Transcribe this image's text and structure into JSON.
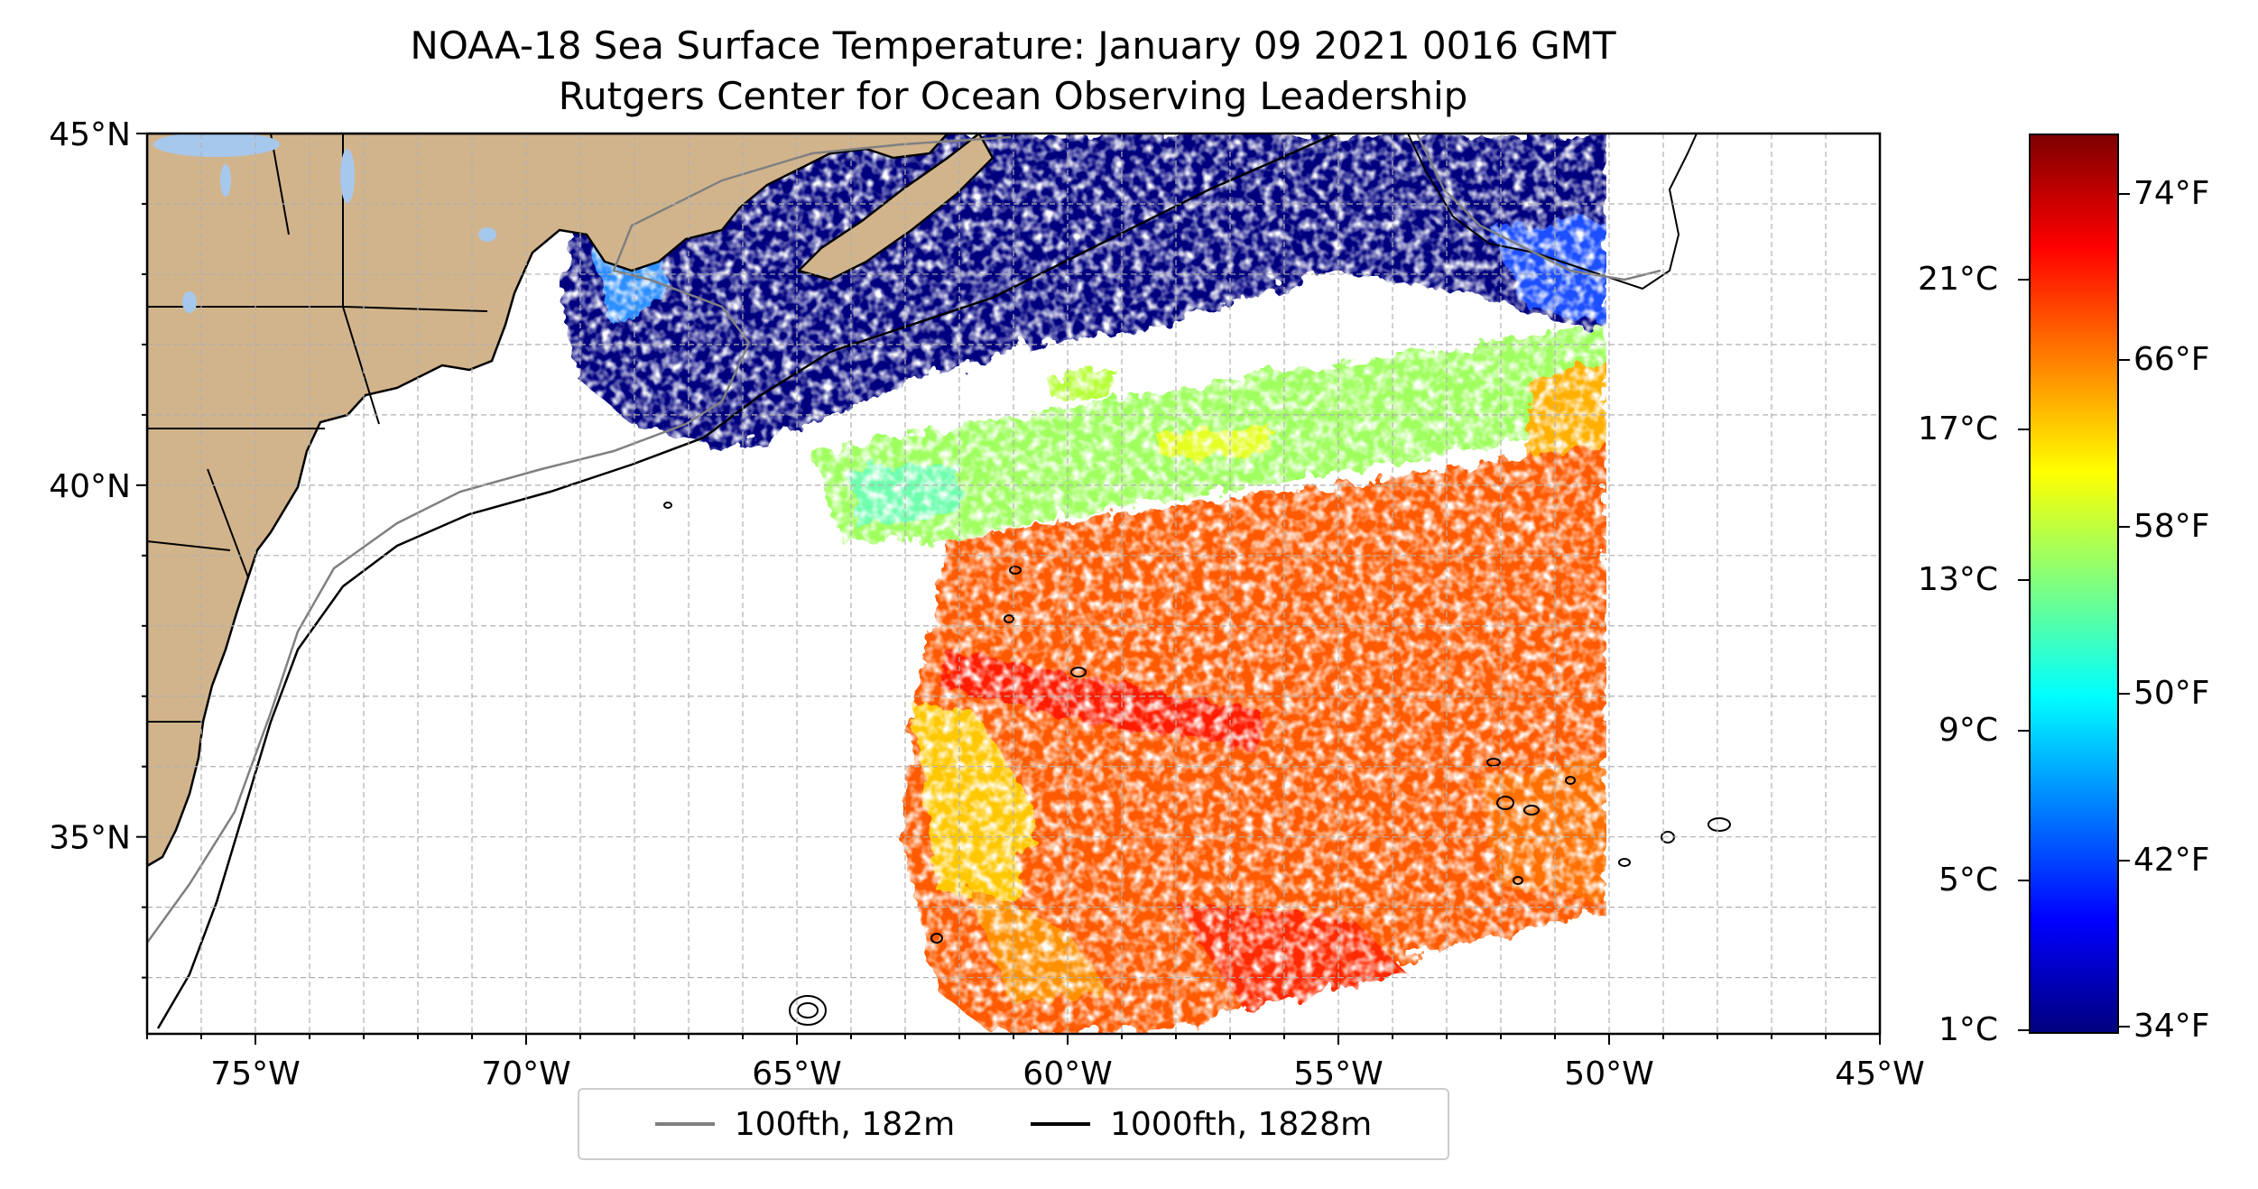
{
  "title": {
    "line1": "NOAA-18 Sea Surface Temperature: January 09 2021 0016 GMT",
    "line2": "Rutgers Center for Ocean Observing Leadership"
  },
  "map": {
    "extent": {
      "lon_min": -77,
      "lon_max": -45,
      "lat_min": 32.2,
      "lat_max": 45
    },
    "lon_ticks": [
      {
        "value": -75,
        "label": "75°W"
      },
      {
        "value": -70,
        "label": "70°W"
      },
      {
        "value": -65,
        "label": "65°W"
      },
      {
        "value": -60,
        "label": "60°W"
      },
      {
        "value": -55,
        "label": "55°W"
      },
      {
        "value": -50,
        "label": "50°W"
      },
      {
        "value": -45,
        "label": "45°W"
      }
    ],
    "lat_ticks": [
      {
        "value": 45,
        "label": "45°N"
      },
      {
        "value": 40,
        "label": "40°N"
      },
      {
        "value": 35,
        "label": "35°N"
      }
    ],
    "grid": "dashed, 1 degree",
    "colors": {
      "land": "#d2b48c",
      "lakes": "#a6c8ec",
      "gridline": "#b0b0b0",
      "contour_100fth": "#808080",
      "contour_1000fth": "#000000"
    }
  },
  "legend": {
    "items": [
      {
        "label": "100fth, 182m",
        "color": "#808080"
      },
      {
        "label": "1000fth, 1828m",
        "color": "#000000"
      }
    ],
    "placement": "bottom-center"
  },
  "colorbar": {
    "colormap": "jet",
    "celsius_labels": [
      "21°C",
      "17°C",
      "13°C",
      "9°C",
      "5°C",
      "1°C"
    ],
    "fahrenheit_labels": [
      "74°F",
      "66°F",
      "58°F",
      "50°F",
      "42°F",
      "34°F"
    ]
  }
}
